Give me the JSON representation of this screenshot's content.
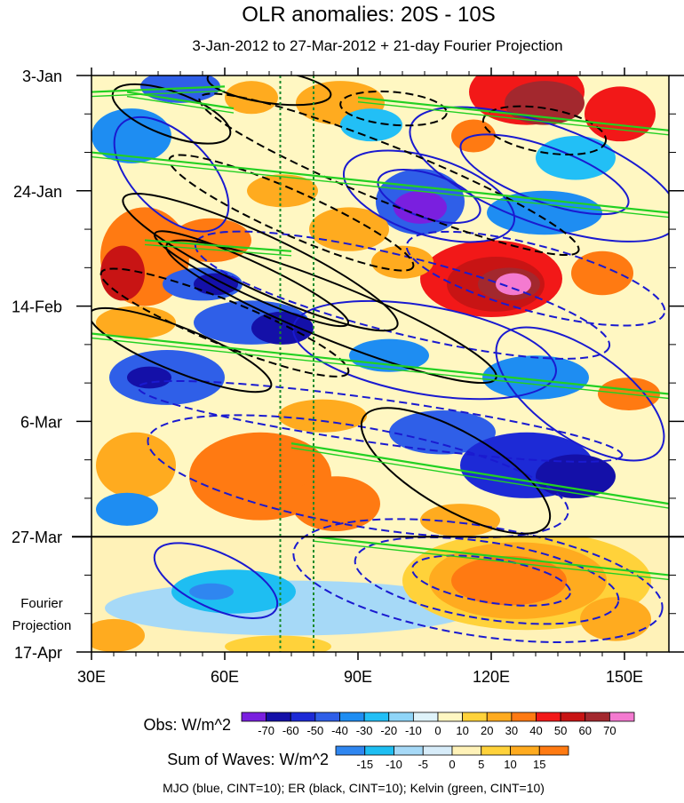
{
  "title": "OLR anomalies: 20S - 10S",
  "subtitle": "3-Jan-2012 to 27-Mar-2012 + 21-day Fourier Projection",
  "projection_label": [
    "Fourier",
    "Projection"
  ],
  "footer": "MJO (blue, CINT=10); ER (black, CINT=10); Kelvin (green, CINT=10)",
  "chart_data": {
    "type": "heatmap",
    "title": "OLR anomalies: 20S - 10S",
    "subtitle": "3-Jan-2012 to 27-Mar-2012 + 21-day Fourier Projection",
    "x_axis": {
      "range": [
        30,
        160
      ],
      "ticks": [
        30,
        60,
        90,
        120,
        150
      ],
      "tick_labels": [
        "30E",
        "60E",
        "90E",
        "120E",
        "150E"
      ]
    },
    "y_axis": {
      "range": [
        0,
        105
      ],
      "ticks": [
        0,
        21,
        42,
        63,
        84,
        105
      ],
      "tick_labels": [
        "3-Jan",
        "24-Jan",
        "14-Feb",
        "6-Mar",
        "27-Mar",
        "17-Apr"
      ]
    },
    "observation_end_day": 84,
    "reference_lines_lon": [
      72.5,
      80
    ],
    "obs_colorbar": {
      "label": "Obs: W/m^2",
      "levels": [
        "-70",
        "-60",
        "-50",
        "-40",
        "-30",
        "-20",
        "-10",
        "0",
        "10",
        "20",
        "30",
        "40",
        "50",
        "60",
        "70"
      ],
      "colors": [
        "#7a1fdf",
        "#1410a8",
        "#1d2ad6",
        "#2f5fe8",
        "#1e8df2",
        "#22bff6",
        "#8fd5f8",
        "#dff3fa",
        "#fff7c2",
        "#ffd23a",
        "#ffab1f",
        "#ff7a12",
        "#f21818",
        "#c81414",
        "#a3282e",
        "#f47ad0"
      ]
    },
    "waves_colorbar": {
      "label": "Sum of Waves: W/m^2",
      "levels": [
        "-15",
        "-10",
        "-5",
        "0",
        "5",
        "10",
        "15"
      ],
      "colors": [
        "#2f86f0",
        "#1ebef2",
        "#a6d9f7",
        "#d7ecf9",
        "#fff2b8",
        "#ffd23a",
        "#ffab1f",
        "#ff7a12"
      ]
    },
    "series": [
      {
        "name": "MJO",
        "color": "#1a1ad0",
        "cint": 10
      },
      {
        "name": "ER",
        "color": "#000000",
        "cint": 10
      },
      {
        "name": "Kelvin",
        "color": "#22d022",
        "cint": 10
      }
    ],
    "obs_patches": [
      {
        "lon": 50,
        "day": 2,
        "rx": 9,
        "ry": 3,
        "v": -40
      },
      {
        "lon": 39,
        "day": 11,
        "rx": 9,
        "ry": 5,
        "v": -30
      },
      {
        "lon": 66,
        "day": 4,
        "rx": 6,
        "ry": 3,
        "v": 20
      },
      {
        "lon": 86,
        "day": 5,
        "rx": 10,
        "ry": 4,
        "v": 20
      },
      {
        "lon": 93,
        "day": 9,
        "rx": 7,
        "ry": 3,
        "v": -20
      },
      {
        "lon": 128,
        "day": 3,
        "rx": 13,
        "ry": 6,
        "v": 40
      },
      {
        "lon": 132,
        "day": 5,
        "rx": 9,
        "ry": 4,
        "v": 60
      },
      {
        "lon": 149,
        "day": 7,
        "rx": 8,
        "ry": 5,
        "v": 40
      },
      {
        "lon": 116,
        "day": 11,
        "rx": 5,
        "ry": 3,
        "v": 30
      },
      {
        "lon": 139,
        "day": 15,
        "rx": 9,
        "ry": 4,
        "v": -20
      },
      {
        "lon": 104,
        "day": 23,
        "rx": 10,
        "ry": 6,
        "v": -40
      },
      {
        "lon": 104,
        "day": 24,
        "rx": 6,
        "ry": 3,
        "v": -70
      },
      {
        "lon": 132,
        "day": 25,
        "rx": 13,
        "ry": 4,
        "v": -30
      },
      {
        "lon": 73,
        "day": 21,
        "rx": 8,
        "ry": 3,
        "v": 20
      },
      {
        "lon": 42,
        "day": 33,
        "rx": 10,
        "ry": 9,
        "v": 30
      },
      {
        "lon": 37,
        "day": 36,
        "rx": 5,
        "ry": 5,
        "v": 50
      },
      {
        "lon": 57,
        "day": 30,
        "rx": 9,
        "ry": 4,
        "v": 30
      },
      {
        "lon": 88,
        "day": 28,
        "rx": 9,
        "ry": 4,
        "v": 20
      },
      {
        "lon": 55,
        "day": 38,
        "rx": 9,
        "ry": 3,
        "v": -40
      },
      {
        "lon": 58,
        "day": 38,
        "rx": 5,
        "ry": 2,
        "v": -60
      },
      {
        "lon": 120,
        "day": 37,
        "rx": 16,
        "ry": 7,
        "v": 40
      },
      {
        "lon": 121,
        "day": 38,
        "rx": 11,
        "ry": 5,
        "v": 50
      },
      {
        "lon": 124,
        "day": 38,
        "rx": 7,
        "ry": 3,
        "v": 60
      },
      {
        "lon": 125,
        "day": 38,
        "rx": 4,
        "ry": 2,
        "v": 70
      },
      {
        "lon": 145,
        "day": 36,
        "rx": 7,
        "ry": 4,
        "v": 30
      },
      {
        "lon": 100,
        "day": 34,
        "rx": 7,
        "ry": 3,
        "v": 20
      },
      {
        "lon": 40,
        "day": 45,
        "rx": 9,
        "ry": 3,
        "v": 20
      },
      {
        "lon": 66,
        "day": 45,
        "rx": 13,
        "ry": 4,
        "v": -40
      },
      {
        "lon": 73,
        "day": 46,
        "rx": 7,
        "ry": 3,
        "v": -60
      },
      {
        "lon": 47,
        "day": 55,
        "rx": 13,
        "ry": 5,
        "v": -40
      },
      {
        "lon": 43,
        "day": 55,
        "rx": 5,
        "ry": 2,
        "v": -60
      },
      {
        "lon": 97,
        "day": 51,
        "rx": 9,
        "ry": 3,
        "v": -30
      },
      {
        "lon": 130,
        "day": 55,
        "rx": 12,
        "ry": 4,
        "v": -30
      },
      {
        "lon": 151,
        "day": 58,
        "rx": 7,
        "ry": 3,
        "v": 30
      },
      {
        "lon": 82,
        "day": 62,
        "rx": 10,
        "ry": 3,
        "v": 20
      },
      {
        "lon": 109,
        "day": 65,
        "rx": 12,
        "ry": 4,
        "v": -40
      },
      {
        "lon": 128,
        "day": 71,
        "rx": 15,
        "ry": 6,
        "v": -50
      },
      {
        "lon": 139,
        "day": 73,
        "rx": 9,
        "ry": 4,
        "v": -60
      },
      {
        "lon": 68,
        "day": 73,
        "rx": 16,
        "ry": 8,
        "v": 30
      },
      {
        "lon": 85,
        "day": 78,
        "rx": 10,
        "ry": 5,
        "v": 30
      },
      {
        "lon": 40,
        "day": 71,
        "rx": 9,
        "ry": 6,
        "v": 20
      },
      {
        "lon": 38,
        "day": 79,
        "rx": 7,
        "ry": 3,
        "v": -30
      },
      {
        "lon": 113,
        "day": 81,
        "rx": 9,
        "ry": 3,
        "v": 20
      }
    ],
    "wave_patches": [
      {
        "lon": 75,
        "day": 97,
        "rx": 42,
        "ry": 5,
        "v": -5
      },
      {
        "lon": 62,
        "day": 94,
        "rx": 14,
        "ry": 4,
        "v": -10
      },
      {
        "lon": 57,
        "day": 94,
        "rx": 5,
        "ry": 1.5,
        "v": -15
      },
      {
        "lon": 35,
        "day": 102,
        "rx": 7,
        "ry": 3,
        "v": 10
      },
      {
        "lon": 72,
        "day": 104,
        "rx": 12,
        "ry": 2,
        "v": 5
      },
      {
        "lon": 128,
        "day": 92,
        "rx": 28,
        "ry": 9,
        "v": 5
      },
      {
        "lon": 126,
        "day": 92,
        "rx": 20,
        "ry": 7,
        "v": 10
      },
      {
        "lon": 124,
        "day": 92,
        "rx": 13,
        "ry": 4.5,
        "v": 15
      },
      {
        "lon": 148,
        "day": 99,
        "rx": 8,
        "ry": 4,
        "v": 10
      }
    ],
    "mjo_contours": [
      {
        "lon": 48,
        "day": 18,
        "rx": 16,
        "ry": 7,
        "rot": 45,
        "dash": false
      },
      {
        "lon": 106,
        "day": 22,
        "rx": 20,
        "ry": 7,
        "rot": 18,
        "dash": false
      },
      {
        "lon": 106,
        "day": 22,
        "rx": 12,
        "ry": 4,
        "rot": 18,
        "dash": false
      },
      {
        "lon": 132,
        "day": 18,
        "rx": 32,
        "ry": 9,
        "rot": 20,
        "dash": false
      },
      {
        "lon": 132,
        "day": 18,
        "rx": 20,
        "ry": 5,
        "rot": 20,
        "dash": false
      },
      {
        "lon": 105,
        "day": 50,
        "rx": 30,
        "ry": 8,
        "rot": 10,
        "dash": false
      },
      {
        "lon": 58,
        "day": 92,
        "rx": 15,
        "ry": 5,
        "rot": 25,
        "dash": false
      },
      {
        "lon": 100,
        "day": 40,
        "rx": 48,
        "ry": 7,
        "rot": 14,
        "dash": true
      },
      {
        "lon": 130,
        "day": 37,
        "rx": 30,
        "ry": 6,
        "rot": 15,
        "dash": true
      },
      {
        "lon": 90,
        "day": 73,
        "rx": 48,
        "ry": 9,
        "rot": 10,
        "dash": true
      },
      {
        "lon": 117,
        "day": 92,
        "rx": 42,
        "ry": 10,
        "rot": 9,
        "dash": true
      },
      {
        "lon": 119,
        "day": 92,
        "rx": 30,
        "ry": 7,
        "rot": 9,
        "dash": true
      },
      {
        "lon": 120,
        "day": 92,
        "rx": 18,
        "ry": 4,
        "rot": 9,
        "dash": true
      },
      {
        "lon": 95,
        "day": 63,
        "rx": 55,
        "ry": 4,
        "rot": 8,
        "dash": true
      },
      {
        "lon": 140,
        "day": 58,
        "rx": 22,
        "ry": 8,
        "rot": 35,
        "dash": false
      }
    ],
    "er_contours": [
      {
        "lon": 68,
        "day": 34,
        "rx": 34,
        "ry": 5,
        "rot": 25,
        "dash": false
      },
      {
        "lon": 66,
        "day": 37,
        "rx": 24,
        "ry": 3,
        "rot": 25,
        "dash": false
      },
      {
        "lon": 84,
        "day": 43,
        "rx": 40,
        "ry": 5,
        "rot": 22,
        "dash": false
      },
      {
        "lon": 50,
        "day": 50,
        "rx": 22,
        "ry": 4,
        "rot": 22,
        "dash": false
      },
      {
        "lon": 97,
        "day": 18,
        "rx": 46,
        "ry": 5,
        "rot": 22,
        "dash": true
      },
      {
        "lon": 75,
        "day": 25,
        "rx": 30,
        "ry": 4,
        "rot": 24,
        "dash": true
      },
      {
        "lon": 60,
        "day": 45,
        "rx": 30,
        "ry": 4,
        "rot": 22,
        "dash": true
      },
      {
        "lon": 48,
        "day": 7,
        "rx": 14,
        "ry": 4,
        "rot": 20,
        "dash": false
      },
      {
        "lon": 112,
        "day": 72,
        "rx": 24,
        "ry": 7,
        "rot": 30,
        "dash": false
      },
      {
        "lon": 132,
        "day": 10,
        "rx": 14,
        "ry": 4,
        "rot": 10,
        "dash": true
      },
      {
        "lon": 98,
        "day": 6,
        "rx": 12,
        "ry": 3,
        "rot": 5,
        "dash": true
      },
      {
        "lon": 70,
        "day": 2,
        "rx": 14,
        "ry": 3,
        "rot": 8,
        "dash": false
      }
    ],
    "kelvin_contours": [
      {
        "lon1": 30,
        "day1": 14,
        "lon2": 160,
        "day2": 25
      },
      {
        "lon1": 38,
        "day1": 3,
        "lon2": 62,
        "day2": 6
      },
      {
        "lon1": 90,
        "day1": 4,
        "lon2": 160,
        "day2": 10
      },
      {
        "lon1": 30,
        "day1": 47,
        "lon2": 160,
        "day2": 58
      },
      {
        "lon1": 42,
        "day1": 30,
        "lon2": 75,
        "day2": 32
      },
      {
        "lon1": 75,
        "day1": 67,
        "lon2": 160,
        "day2": 78
      },
      {
        "lon1": 80,
        "day1": 84,
        "lon2": 160,
        "day2": 91
      },
      {
        "lon1": 30,
        "day1": 3,
        "lon2": 60,
        "day2": 2
      }
    ]
  }
}
